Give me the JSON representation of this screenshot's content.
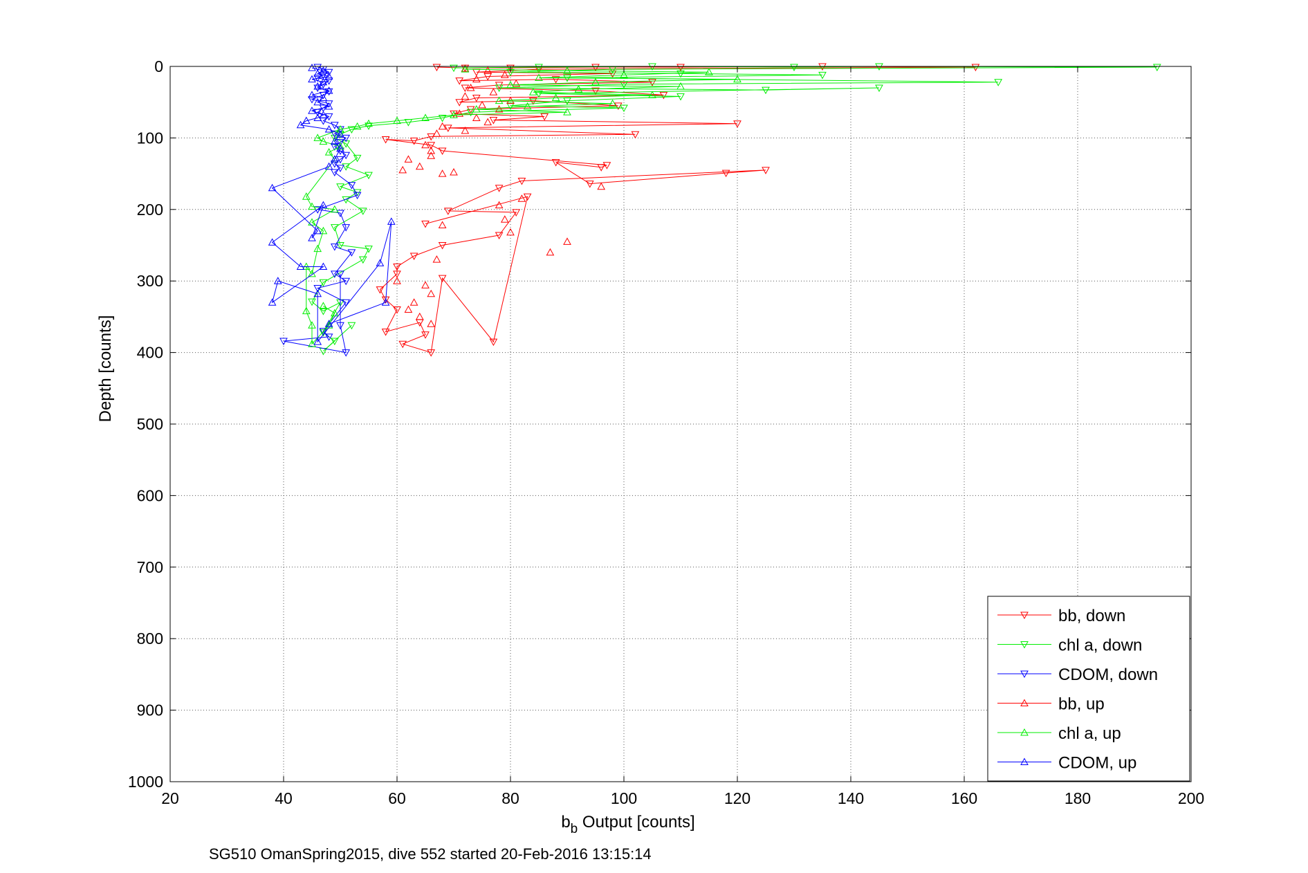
{
  "chart_data": {
    "type": "scatter",
    "xlabel_main": "b",
    "xlabel_sub": "b",
    "xlabel_rest": " Output [counts]",
    "ylabel": "Depth [counts]",
    "caption": "SG510 OmanSpring2015, dive 552 started 20-Feb-2016 13:15:14",
    "xlim": [
      20,
      200
    ],
    "ylim": [
      0,
      1000
    ],
    "y_reversed": true,
    "grid": true,
    "legend_position": "bottom-right",
    "x_ticks": [
      "20",
      "40",
      "60",
      "80",
      "100",
      "120",
      "140",
      "160",
      "180",
      "200"
    ],
    "y_ticks": [
      "0",
      "100",
      "200",
      "300",
      "400",
      "500",
      "600",
      "700",
      "800",
      "900",
      "1000"
    ],
    "series": [
      {
        "name": "bb, down",
        "color": "#ff0000",
        "marker": "triangle-down",
        "connected": true,
        "points": [
          [
            67,
            1
          ],
          [
            72,
            2
          ],
          [
            80,
            2
          ],
          [
            95,
            1
          ],
          [
            110,
            1
          ],
          [
            135,
            0
          ],
          [
            162,
            1
          ],
          [
            85,
            4
          ],
          [
            74,
            8
          ],
          [
            98,
            10
          ],
          [
            76,
            14
          ],
          [
            71,
            20
          ],
          [
            88,
            18
          ],
          [
            105,
            22
          ],
          [
            78,
            26
          ],
          [
            72,
            30
          ],
          [
            95,
            34
          ],
          [
            107,
            40
          ],
          [
            74,
            44
          ],
          [
            71,
            50
          ],
          [
            84,
            48
          ],
          [
            99,
            55
          ],
          [
            73,
            60
          ],
          [
            70,
            66
          ],
          [
            86,
            70
          ],
          [
            77,
            75
          ],
          [
            120,
            80
          ],
          [
            69,
            86
          ],
          [
            102,
            95
          ],
          [
            66,
            98
          ],
          [
            63,
            104
          ],
          [
            58,
            102
          ],
          [
            66,
            110
          ],
          [
            68,
            118
          ],
          [
            97,
            138
          ],
          [
            96,
            141
          ],
          [
            88,
            134
          ],
          [
            94,
            164
          ],
          [
            118,
            149
          ],
          [
            125,
            145
          ],
          [
            82,
            160
          ],
          [
            78,
            170
          ],
          [
            69,
            202
          ],
          [
            81,
            204
          ],
          [
            78,
            236
          ],
          [
            68,
            250
          ],
          [
            63,
            265
          ],
          [
            60,
            280
          ],
          [
            60,
            290
          ],
          [
            57,
            312
          ],
          [
            58,
            326
          ],
          [
            60,
            340
          ],
          [
            58,
            371
          ],
          [
            64,
            358
          ],
          [
            65,
            375
          ],
          [
            61,
            388
          ],
          [
            66,
            400
          ],
          [
            68,
            296
          ],
          [
            77,
            385
          ],
          [
            83,
            182
          ],
          [
            65,
            220
          ]
        ]
      },
      {
        "name": "chl a, down",
        "color": "#00ee00",
        "marker": "triangle-down",
        "connected": true,
        "points": [
          [
            70,
            2
          ],
          [
            85,
            1
          ],
          [
            105,
            0
          ],
          [
            130,
            1
          ],
          [
            145,
            0
          ],
          [
            194,
            1
          ],
          [
            98,
            4
          ],
          [
            80,
            8
          ],
          [
            110,
            10
          ],
          [
            135,
            12
          ],
          [
            90,
            16
          ],
          [
            166,
            22
          ],
          [
            100,
            25
          ],
          [
            78,
            30
          ],
          [
            125,
            33
          ],
          [
            145,
            30
          ],
          [
            85,
            38
          ],
          [
            110,
            42
          ],
          [
            90,
            48
          ],
          [
            80,
            55
          ],
          [
            100,
            58
          ],
          [
            73,
            64
          ],
          [
            68,
            72
          ],
          [
            62,
            78
          ],
          [
            55,
            83
          ],
          [
            52,
            88
          ],
          [
            50,
            95
          ],
          [
            49,
            100
          ],
          [
            51,
            108
          ],
          [
            53,
            128
          ],
          [
            51,
            140
          ],
          [
            55,
            152
          ],
          [
            50,
            168
          ],
          [
            53,
            176
          ],
          [
            51,
            186
          ],
          [
            54,
            202
          ],
          [
            49,
            225
          ],
          [
            50,
            250
          ],
          [
            55,
            255
          ],
          [
            54,
            270
          ],
          [
            47,
            302
          ],
          [
            45,
            329
          ],
          [
            47,
            342
          ],
          [
            50,
            330
          ],
          [
            47,
            372
          ],
          [
            49,
            384
          ],
          [
            47,
            398
          ],
          [
            52,
            362
          ]
        ]
      },
      {
        "name": "CDOM, down",
        "color": "#0000ff",
        "marker": "triangle-down",
        "connected": true,
        "points": [
          [
            46,
            1
          ],
          [
            47,
            4
          ],
          [
            48,
            8
          ],
          [
            47,
            12
          ],
          [
            46,
            16
          ],
          [
            48,
            20
          ],
          [
            47,
            25
          ],
          [
            46,
            30
          ],
          [
            48,
            35
          ],
          [
            47,
            40
          ],
          [
            45,
            46
          ],
          [
            48,
            52
          ],
          [
            47,
            58
          ],
          [
            46,
            64
          ],
          [
            48,
            70
          ],
          [
            47,
            76
          ],
          [
            49,
            82
          ],
          [
            50,
            88
          ],
          [
            49,
            94
          ],
          [
            51,
            100
          ],
          [
            50,
            106
          ],
          [
            49,
            112
          ],
          [
            50,
            118
          ],
          [
            51,
            124
          ],
          [
            50,
            130
          ],
          [
            49,
            136
          ],
          [
            50,
            142
          ],
          [
            49,
            148
          ],
          [
            52,
            166
          ],
          [
            53,
            180
          ],
          [
            46,
            200
          ],
          [
            50,
            205
          ],
          [
            51,
            225
          ],
          [
            49,
            252
          ],
          [
            52,
            260
          ],
          [
            49,
            290
          ],
          [
            51,
            300
          ],
          [
            46,
            310
          ],
          [
            51,
            330
          ],
          [
            47,
            370
          ],
          [
            48,
            378
          ],
          [
            40,
            384
          ],
          [
            51,
            400
          ],
          [
            50,
            362
          ],
          [
            50,
            290
          ]
        ]
      },
      {
        "name": "bb, up",
        "color": "#ff0000",
        "marker": "triangle-up",
        "connected": false,
        "points": [
          [
            72,
            3
          ],
          [
            76,
            6
          ],
          [
            79,
            12
          ],
          [
            74,
            18
          ],
          [
            81,
            24
          ],
          [
            73,
            30
          ],
          [
            77,
            36
          ],
          [
            72,
            42
          ],
          [
            80,
            48
          ],
          [
            75,
            54
          ],
          [
            78,
            60
          ],
          [
            71,
            66
          ],
          [
            74,
            72
          ],
          [
            76,
            78
          ],
          [
            68,
            84
          ],
          [
            72,
            90
          ],
          [
            67,
            94
          ],
          [
            65,
            110
          ],
          [
            66,
            118
          ],
          [
            62,
            130
          ],
          [
            64,
            140
          ],
          [
            61,
            145
          ],
          [
            68,
            150
          ],
          [
            70,
            148
          ],
          [
            66,
            125
          ],
          [
            96,
            168
          ],
          [
            78,
            194
          ],
          [
            82,
            185
          ],
          [
            79,
            214
          ],
          [
            68,
            222
          ],
          [
            90,
            245
          ],
          [
            87,
            260
          ],
          [
            80,
            232
          ],
          [
            67,
            270
          ],
          [
            65,
            306
          ],
          [
            66,
            318
          ],
          [
            63,
            330
          ],
          [
            64,
            350
          ],
          [
            62,
            340
          ],
          [
            60,
            300
          ],
          [
            66,
            360
          ]
        ]
      },
      {
        "name": "chl a, up",
        "color": "#00ee00",
        "marker": "triangle-up",
        "connected": true,
        "points": [
          [
            72,
            4
          ],
          [
            90,
            6
          ],
          [
            115,
            8
          ],
          [
            100,
            12
          ],
          [
            85,
            16
          ],
          [
            120,
            18
          ],
          [
            95,
            22
          ],
          [
            80,
            26
          ],
          [
            110,
            28
          ],
          [
            92,
            32
          ],
          [
            84,
            36
          ],
          [
            105,
            40
          ],
          [
            88,
            44
          ],
          [
            78,
            48
          ],
          [
            98,
            52
          ],
          [
            83,
            56
          ],
          [
            74,
            60
          ],
          [
            90,
            64
          ],
          [
            70,
            68
          ],
          [
            65,
            72
          ],
          [
            60,
            76
          ],
          [
            55,
            80
          ],
          [
            53,
            84
          ],
          [
            50,
            88
          ],
          [
            46,
            100
          ],
          [
            47,
            105
          ],
          [
            50,
            112
          ],
          [
            48,
            120
          ],
          [
            49,
            130
          ],
          [
            44,
            182
          ],
          [
            45,
            196
          ],
          [
            49,
            200
          ],
          [
            45,
            218
          ],
          [
            47,
            230
          ],
          [
            46,
            255
          ],
          [
            45,
            290
          ],
          [
            44,
            280
          ],
          [
            44,
            342
          ],
          [
            45,
            362
          ],
          [
            45,
            388
          ],
          [
            48,
            362
          ],
          [
            49,
            345
          ],
          [
            47,
            335
          ]
        ]
      },
      {
        "name": "CDOM, up",
        "color": "#0000ff",
        "marker": "triangle-up",
        "connected": true,
        "points": [
          [
            45,
            2
          ],
          [
            47,
            6
          ],
          [
            46,
            10
          ],
          [
            48,
            14
          ],
          [
            45,
            18
          ],
          [
            47,
            22
          ],
          [
            46,
            28
          ],
          [
            48,
            34
          ],
          [
            45,
            40
          ],
          [
            47,
            44
          ],
          [
            46,
            50
          ],
          [
            48,
            56
          ],
          [
            45,
            62
          ],
          [
            47,
            68
          ],
          [
            46,
            72
          ],
          [
            44,
            76
          ],
          [
            43,
            82
          ],
          [
            48,
            88
          ],
          [
            50,
            95
          ],
          [
            49,
            105
          ],
          [
            50,
            115
          ],
          [
            49,
            130
          ],
          [
            48,
            140
          ],
          [
            38,
            170
          ],
          [
            46,
            230
          ],
          [
            45,
            240
          ],
          [
            47,
            194
          ],
          [
            38,
            246
          ],
          [
            43,
            280
          ],
          [
            47,
            280
          ],
          [
            38,
            330
          ],
          [
            39,
            300
          ],
          [
            46,
            318
          ],
          [
            46,
            385
          ],
          [
            57,
            275
          ],
          [
            59,
            217
          ],
          [
            58,
            330
          ],
          [
            48,
            360
          ]
        ]
      }
    ]
  }
}
